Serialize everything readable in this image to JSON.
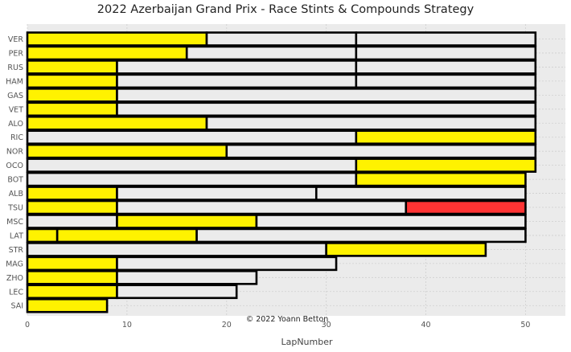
{
  "chart_data": {
    "type": "bar",
    "orientation": "horizontal-stacked",
    "title": "2022 Azerbaijan Grand Prix - Race Stints & Compounds Strategy",
    "xlabel": "LapNumber",
    "ylabel": "",
    "xlim": [
      0,
      54
    ],
    "xticks": [
      "0",
      "10",
      "20",
      "30",
      "40",
      "50"
    ],
    "grid": true,
    "annotation": "© 2022 Yoann Betton",
    "compound_colors": {
      "MEDIUM": "#fff200",
      "HARD": "#ebebeb",
      "SOFT": "#ff3333"
    },
    "drivers": [
      {
        "driver": "VER",
        "stints": [
          {
            "compound": "MEDIUM",
            "laps": 18
          },
          {
            "compound": "HARD",
            "laps": 15
          },
          {
            "compound": "HARD",
            "laps": 18
          }
        ]
      },
      {
        "driver": "PER",
        "stints": [
          {
            "compound": "MEDIUM",
            "laps": 16
          },
          {
            "compound": "HARD",
            "laps": 17
          },
          {
            "compound": "HARD",
            "laps": 18
          }
        ]
      },
      {
        "driver": "RUS",
        "stints": [
          {
            "compound": "MEDIUM",
            "laps": 9
          },
          {
            "compound": "HARD",
            "laps": 24
          },
          {
            "compound": "HARD",
            "laps": 18
          }
        ]
      },
      {
        "driver": "HAM",
        "stints": [
          {
            "compound": "MEDIUM",
            "laps": 9
          },
          {
            "compound": "HARD",
            "laps": 24
          },
          {
            "compound": "HARD",
            "laps": 18
          }
        ]
      },
      {
        "driver": "GAS",
        "stints": [
          {
            "compound": "MEDIUM",
            "laps": 9
          },
          {
            "compound": "HARD",
            "laps": 42
          }
        ]
      },
      {
        "driver": "VET",
        "stints": [
          {
            "compound": "MEDIUM",
            "laps": 9
          },
          {
            "compound": "HARD",
            "laps": 42
          }
        ]
      },
      {
        "driver": "ALO",
        "stints": [
          {
            "compound": "MEDIUM",
            "laps": 18
          },
          {
            "compound": "HARD",
            "laps": 33
          }
        ]
      },
      {
        "driver": "RIC",
        "stints": [
          {
            "compound": "HARD",
            "laps": 33
          },
          {
            "compound": "MEDIUM",
            "laps": 18
          }
        ]
      },
      {
        "driver": "NOR",
        "stints": [
          {
            "compound": "MEDIUM",
            "laps": 20
          },
          {
            "compound": "HARD",
            "laps": 31
          }
        ]
      },
      {
        "driver": "OCO",
        "stints": [
          {
            "compound": "HARD",
            "laps": 33
          },
          {
            "compound": "MEDIUM",
            "laps": 18
          }
        ]
      },
      {
        "driver": "BOT",
        "stints": [
          {
            "compound": "HARD",
            "laps": 33
          },
          {
            "compound": "MEDIUM",
            "laps": 17
          }
        ]
      },
      {
        "driver": "ALB",
        "stints": [
          {
            "compound": "MEDIUM",
            "laps": 9
          },
          {
            "compound": "HARD",
            "laps": 20
          },
          {
            "compound": "HARD",
            "laps": 21
          }
        ]
      },
      {
        "driver": "TSU",
        "stints": [
          {
            "compound": "MEDIUM",
            "laps": 9
          },
          {
            "compound": "HARD",
            "laps": 29
          },
          {
            "compound": "SOFT",
            "laps": 12
          }
        ]
      },
      {
        "driver": "MSC",
        "stints": [
          {
            "compound": "HARD",
            "laps": 9
          },
          {
            "compound": "MEDIUM",
            "laps": 14
          },
          {
            "compound": "HARD",
            "laps": 27
          }
        ]
      },
      {
        "driver": "LAT",
        "stints": [
          {
            "compound": "MEDIUM",
            "laps": 3
          },
          {
            "compound": "MEDIUM",
            "laps": 14
          },
          {
            "compound": "HARD",
            "laps": 33
          }
        ]
      },
      {
        "driver": "STR",
        "stints": [
          {
            "compound": "HARD",
            "laps": 30
          },
          {
            "compound": "MEDIUM",
            "laps": 16
          }
        ]
      },
      {
        "driver": "MAG",
        "stints": [
          {
            "compound": "MEDIUM",
            "laps": 9
          },
          {
            "compound": "HARD",
            "laps": 22
          }
        ]
      },
      {
        "driver": "ZHO",
        "stints": [
          {
            "compound": "MEDIUM",
            "laps": 9
          },
          {
            "compound": "HARD",
            "laps": 14
          }
        ]
      },
      {
        "driver": "LEC",
        "stints": [
          {
            "compound": "MEDIUM",
            "laps": 9
          },
          {
            "compound": "HARD",
            "laps": 12
          }
        ]
      },
      {
        "driver": "SAI",
        "stints": [
          {
            "compound": "MEDIUM",
            "laps": 8
          }
        ]
      }
    ]
  }
}
